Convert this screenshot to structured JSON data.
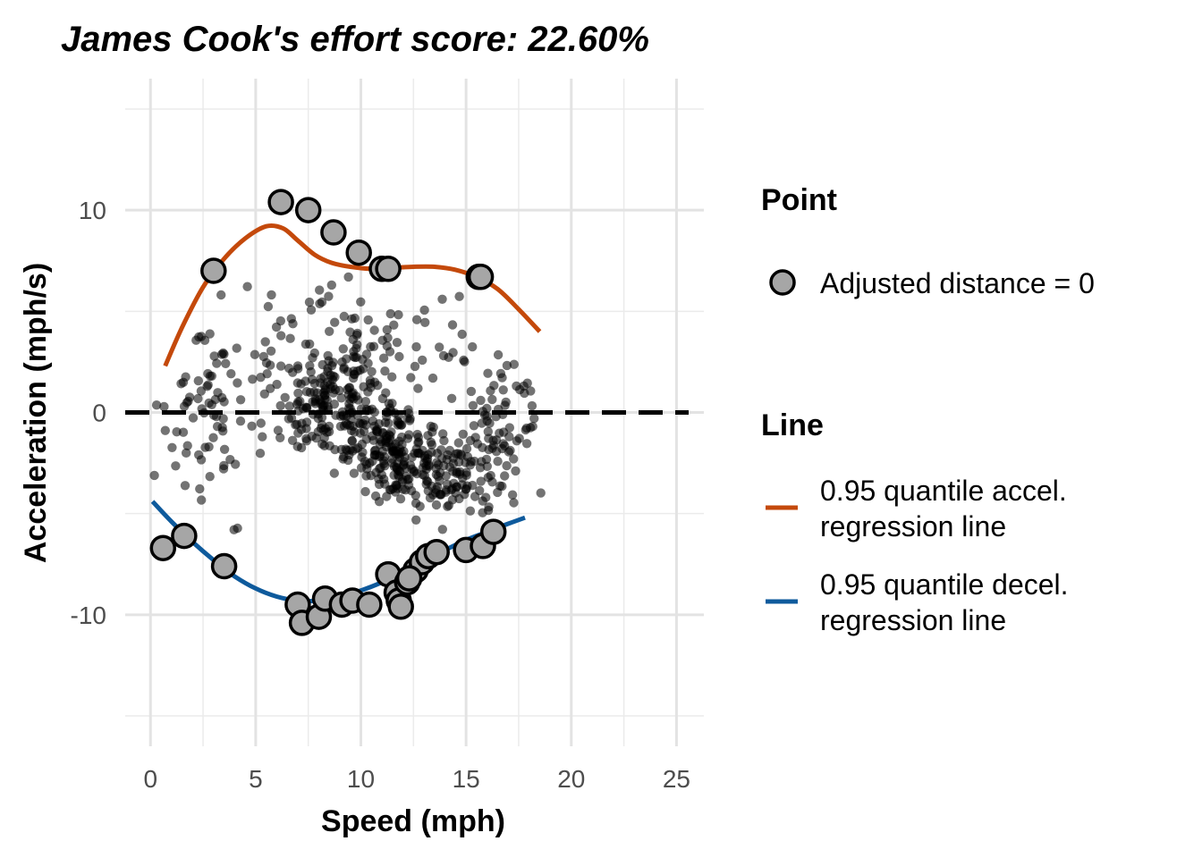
{
  "chart_data": {
    "type": "scatter",
    "title": "James Cook's effort score: 22.60%",
    "xlabel": "Speed (mph)",
    "ylabel": "Acceleration (mph/s)",
    "xlim": [
      -1.2,
      26.3
    ],
    "ylim": [
      -16.5,
      16.5
    ],
    "x_ticks": [
      0,
      5,
      10,
      15,
      20,
      25
    ],
    "x_tick_labels": [
      "0",
      "5",
      "10",
      "15",
      "20",
      "25"
    ],
    "y_ticks": [
      -10,
      0,
      10
    ],
    "y_tick_labels": [
      "-10",
      "0",
      "10"
    ],
    "grid": true,
    "reference_line": {
      "y": 0,
      "style": "dashed",
      "color": "#000000"
    },
    "background_points": {
      "count": 700,
      "color": "#000000",
      "opacity": 0.55,
      "x_range": [
        0,
        18.8
      ],
      "note_visible": false
    },
    "highlight_points": {
      "legend_label": "Adjusted distance = 0",
      "fill": "#a6a6a6",
      "stroke": "#000000",
      "points": [
        [
          6.2,
          10.4
        ],
        [
          7.5,
          10.0
        ],
        [
          8.7,
          8.9
        ],
        [
          9.9,
          7.9
        ],
        [
          11.0,
          7.1
        ],
        [
          11.3,
          7.1
        ],
        [
          3.0,
          7.0
        ],
        [
          15.6,
          6.7
        ],
        [
          15.7,
          6.7
        ],
        [
          0.6,
          -6.7
        ],
        [
          1.6,
          -6.1
        ],
        [
          3.5,
          -7.6
        ],
        [
          7.0,
          -9.5
        ],
        [
          7.2,
          -10.4
        ],
        [
          8.0,
          -10.1
        ],
        [
          8.3,
          -9.2
        ],
        [
          9.1,
          -9.5
        ],
        [
          9.6,
          -9.3
        ],
        [
          10.4,
          -9.5
        ],
        [
          11.3,
          -8.0
        ],
        [
          11.7,
          -8.9
        ],
        [
          11.8,
          -9.3
        ],
        [
          11.9,
          -9.6
        ],
        [
          12.2,
          -8.4
        ],
        [
          12.6,
          -7.8
        ],
        [
          12.9,
          -7.4
        ],
        [
          13.2,
          -7.1
        ],
        [
          13.6,
          -6.9
        ],
        [
          15.0,
          -6.8
        ],
        [
          15.8,
          -6.6
        ],
        [
          16.3,
          -5.9
        ],
        [
          12.3,
          -8.2
        ]
      ]
    },
    "series": [
      {
        "name": "0.95 quantile accel. regression line",
        "color": "#c4490b",
        "x": [
          0.7,
          1.5,
          2.5,
          3.5,
          4.5,
          5.5,
          6.3,
          7.0,
          7.8,
          8.6,
          9.5,
          10.5,
          11.5,
          12.5,
          13.5,
          14.5,
          15.5,
          16.5,
          17.5,
          18.5
        ],
        "y": [
          2.3,
          4.2,
          6.2,
          7.6,
          8.6,
          9.2,
          9.1,
          8.5,
          7.8,
          7.4,
          7.2,
          7.1,
          7.15,
          7.2,
          7.2,
          7.05,
          6.7,
          6.1,
          5.1,
          4.0
        ]
      },
      {
        "name": "0.95 quantile decel. regression line",
        "color": "#0e5a9c",
        "x": [
          0.1,
          1.0,
          2.0,
          3.0,
          4.0,
          5.0,
          6.0,
          7.0,
          8.0,
          9.0,
          10.0,
          11.0,
          12.0,
          13.0,
          14.0,
          15.0,
          16.0,
          17.0,
          17.8
        ],
        "y": [
          -4.4,
          -5.4,
          -6.4,
          -7.3,
          -8.1,
          -8.7,
          -9.1,
          -9.3,
          -9.3,
          -9.1,
          -8.8,
          -8.4,
          -7.9,
          -7.3,
          -6.8,
          -6.3,
          -5.9,
          -5.5,
          -5.2
        ]
      }
    ],
    "legend": {
      "position": "right",
      "point_title": "Point",
      "point_label": "Adjusted distance = 0",
      "line_title": "Line",
      "line_items": [
        {
          "line1": "0.95 quantile accel.",
          "line2": "regression line",
          "color": "#c4490b"
        },
        {
          "line1": "0.95 quantile decel.",
          "line2": "regression line",
          "color": "#0e5a9c"
        }
      ]
    }
  }
}
